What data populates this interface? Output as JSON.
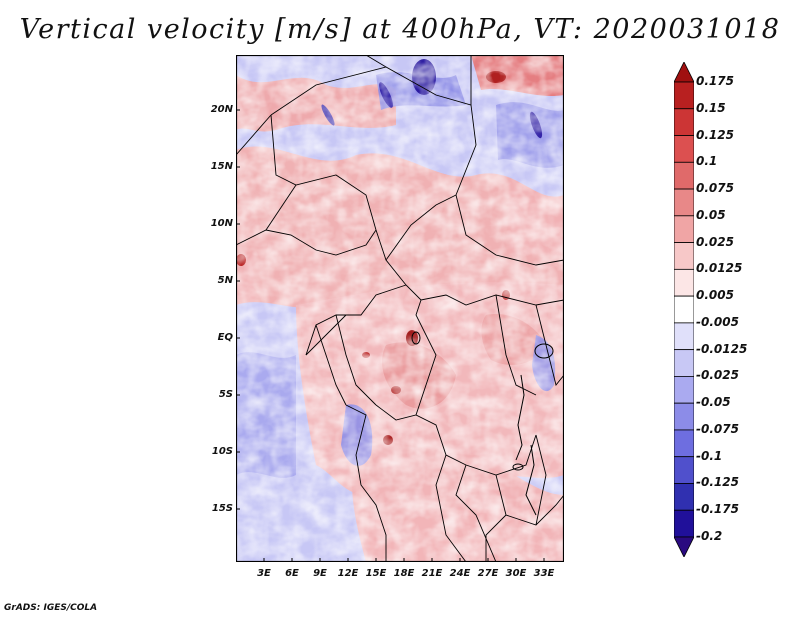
{
  "title": "Vertical velocity [m/s] at 400hPa, VT: 2020031018",
  "credit": "GrADS: IGES/COLA",
  "map": {
    "lat_labels": [
      "20N",
      "15N",
      "10N",
      "5N",
      "EQ",
      "5S",
      "10S",
      "15S"
    ],
    "lon_labels": [
      "3E",
      "6E",
      "9E",
      "12E",
      "15E",
      "18E",
      "21E",
      "24E",
      "27E",
      "30E",
      "33E"
    ]
  },
  "colorbar": {
    "levels": [
      "0.175",
      "0.15",
      "0.125",
      "0.1",
      "0.075",
      "0.05",
      "0.025",
      "0.0125",
      "0.005",
      "-0.005",
      "-0.0125",
      "-0.025",
      "-0.05",
      "-0.075",
      "-0.1",
      "-0.125",
      "-0.175",
      "-0.2"
    ],
    "colors": [
      "#a01010",
      "#b82020",
      "#cc3535",
      "#dc5050",
      "#e06a6a",
      "#e88888",
      "#f0a5a5",
      "#f7c8c8",
      "#fce6e6",
      "#ffffff",
      "#e0e0fa",
      "#c8c8f5",
      "#aaaaf0",
      "#8c8ce8",
      "#6e6ee0",
      "#5050cc",
      "#3030b0",
      "#20109a",
      "#2a0a80"
    ]
  }
}
